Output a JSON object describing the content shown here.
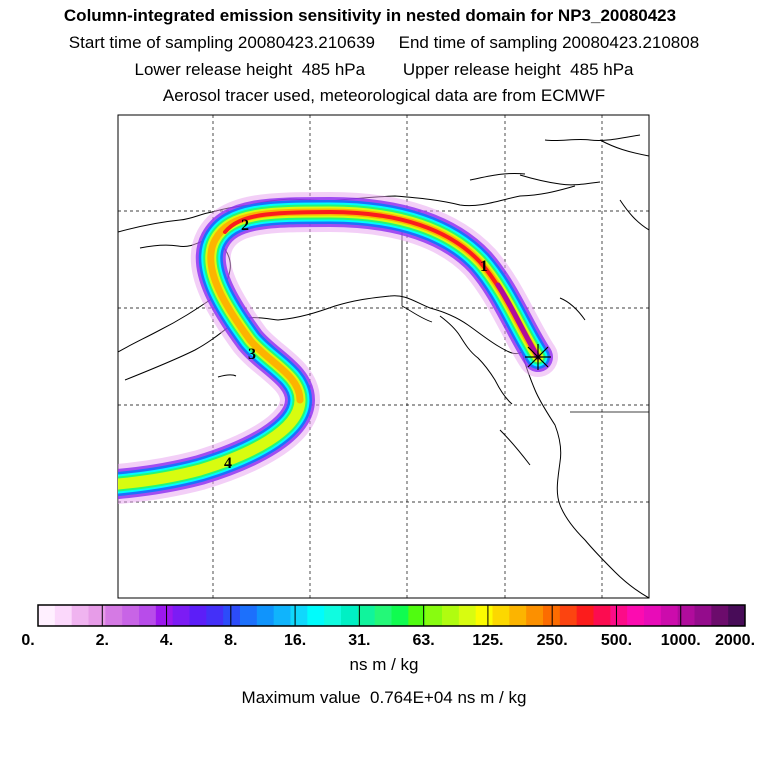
{
  "header": {
    "title": "Column-integrated emission sensitivity in nested domain for NP3_20080423",
    "sampling_line": "Start time of sampling 20080423.210639     End time of sampling 20080423.210808",
    "release_line": "Lower release height  485 hPa        Upper release height  485 hPa",
    "source_line": "Aerosol tracer used, meteorological data are from ECMWF"
  },
  "map": {
    "region": "North Pacific / Alaska / western North America",
    "day_markers": [
      "1",
      "2",
      "3",
      "4"
    ],
    "release_marker": "release-site-star",
    "projection_grid": "dashed"
  },
  "colorbar": {
    "tick_labels": [
      "0.",
      "2.",
      "4.",
      "8.",
      "16.",
      "31.",
      "63.",
      "125.",
      "250.",
      "500.",
      "1000.",
      "2000."
    ],
    "colors": [
      "#fff0ff",
      "#fbd8fb",
      "#f0b4f0",
      "#e79ce8",
      "#d57ae4",
      "#c864e6",
      "#b84cea",
      "#9c18ee",
      "#7c1cf4",
      "#5c1ef8",
      "#4430f8",
      "#2c4cfa",
      "#1c70fc",
      "#1094fc",
      "#10b4fc",
      "#10d8fc",
      "#00fcfc",
      "#10fce0",
      "#00f0c4",
      "#10f49c",
      "#24f878",
      "#10fc50",
      "#50fc10",
      "#88fc10",
      "#b0fc10",
      "#d8fc10",
      "#fcfc00",
      "#fcd800",
      "#fcb400",
      "#fc9000",
      "#fc6c00",
      "#fc4410",
      "#fc1c1c",
      "#fc0c50",
      "#fc0c88",
      "#fc0cb0",
      "#e80cb8",
      "#cc0cac",
      "#b00c9c",
      "#940c8c",
      "#6c0c6c",
      "#480c58"
    ],
    "units": "ns m / kg"
  },
  "footer": {
    "maximum_value": "Maximum value  0.764E+04 ns m / kg"
  }
}
